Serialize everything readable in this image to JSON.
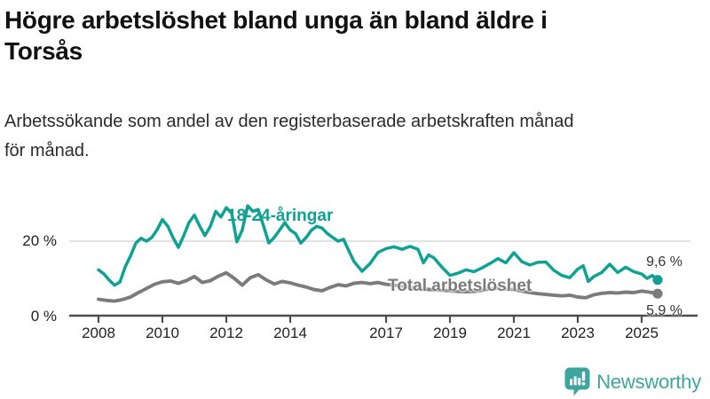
{
  "header": {
    "title_lines": [
      "Högre arbetslöshet bland unga än bland äldre i",
      "Torsås"
    ],
    "subtitle_lines": [
      "Arbetssökande som andel av den registerbaserade arbetskraften månad",
      "för månad."
    ]
  },
  "chart_data": {
    "type": "line",
    "title": "Högre arbetslöshet bland unga än bland äldre i Torsås",
    "subtitle": "Arbetssökande som andel av den registerbaserade arbetskraften månad för månad.",
    "xlabel": "",
    "ylabel": "",
    "unit": "%",
    "ylim": [
      0,
      31
    ],
    "x_range": [
      2008.0,
      2025.5
    ],
    "x_ticks": [
      2008,
      2010,
      2012,
      2014,
      2017,
      2019,
      2021,
      2023,
      2025
    ],
    "y_ticks": [
      {
        "value": 0,
        "label": "0 %"
      },
      {
        "value": 20,
        "label": "20 %"
      }
    ],
    "grid": "single horizontal gridline at 20 %",
    "legend_position": "inline labels on lines",
    "series": [
      {
        "name": "18-24-åringar",
        "color": "#0FA294",
        "end_label": "9,6 %",
        "end_value": 9.6,
        "points": [
          [
            2008.0,
            12.3
          ],
          [
            2008.17,
            11.2
          ],
          [
            2008.33,
            9.6
          ],
          [
            2008.5,
            8.2
          ],
          [
            2008.67,
            9.0
          ],
          [
            2008.83,
            13.0
          ],
          [
            2009.0,
            16.0
          ],
          [
            2009.17,
            19.5
          ],
          [
            2009.33,
            20.8
          ],
          [
            2009.5,
            20.0
          ],
          [
            2009.67,
            21.0
          ],
          [
            2009.83,
            23.0
          ],
          [
            2010.0,
            25.8
          ],
          [
            2010.17,
            24.0
          ],
          [
            2010.33,
            21.0
          ],
          [
            2010.5,
            18.3
          ],
          [
            2010.67,
            21.5
          ],
          [
            2010.83,
            25.0
          ],
          [
            2011.0,
            27.0
          ],
          [
            2011.17,
            24.0
          ],
          [
            2011.33,
            21.5
          ],
          [
            2011.5,
            24.0
          ],
          [
            2011.67,
            28.0
          ],
          [
            2011.83,
            26.5
          ],
          [
            2012.0,
            29.0
          ],
          [
            2012.17,
            27.5
          ],
          [
            2012.33,
            19.8
          ],
          [
            2012.5,
            23.0
          ],
          [
            2012.67,
            29.5
          ],
          [
            2012.83,
            28.0
          ],
          [
            2013.0,
            28.5
          ],
          [
            2013.17,
            24.0
          ],
          [
            2013.33,
            19.5
          ],
          [
            2013.5,
            21.0
          ],
          [
            2013.67,
            23.0
          ],
          [
            2013.83,
            25.0
          ],
          [
            2014.0,
            23.0
          ],
          [
            2014.17,
            22.0
          ],
          [
            2014.33,
            19.5
          ],
          [
            2014.5,
            21.0
          ],
          [
            2014.67,
            23.0
          ],
          [
            2014.83,
            24.0
          ],
          [
            2015.0,
            23.5
          ],
          [
            2015.17,
            22.0
          ],
          [
            2015.33,
            21.0
          ],
          [
            2015.5,
            20.0
          ],
          [
            2015.67,
            20.5
          ],
          [
            2015.83,
            17.5
          ],
          [
            2016.0,
            14.5
          ],
          [
            2016.25,
            11.9
          ],
          [
            2016.5,
            14.0
          ],
          [
            2016.75,
            17.0
          ],
          [
            2017.0,
            18.0
          ],
          [
            2017.25,
            18.5
          ],
          [
            2017.5,
            17.8
          ],
          [
            2017.75,
            18.6
          ],
          [
            2018.0,
            17.8
          ],
          [
            2018.17,
            14.2
          ],
          [
            2018.33,
            16.3
          ],
          [
            2018.5,
            15.5
          ],
          [
            2018.75,
            13.0
          ],
          [
            2019.0,
            10.8
          ],
          [
            2019.25,
            11.4
          ],
          [
            2019.5,
            12.3
          ],
          [
            2019.75,
            11.8
          ],
          [
            2020.0,
            12.8
          ],
          [
            2020.25,
            14.0
          ],
          [
            2020.5,
            15.3
          ],
          [
            2020.75,
            14.2
          ],
          [
            2021.0,
            16.9
          ],
          [
            2021.25,
            14.5
          ],
          [
            2021.5,
            13.6
          ],
          [
            2021.75,
            14.3
          ],
          [
            2022.0,
            14.4
          ],
          [
            2022.25,
            12.2
          ],
          [
            2022.5,
            10.8
          ],
          [
            2022.75,
            10.2
          ],
          [
            2023.0,
            12.5
          ],
          [
            2023.17,
            13.4
          ],
          [
            2023.33,
            9.2
          ],
          [
            2023.5,
            10.5
          ],
          [
            2023.75,
            11.6
          ],
          [
            2024.0,
            13.8
          ],
          [
            2024.25,
            11.6
          ],
          [
            2024.5,
            13.0
          ],
          [
            2024.75,
            11.8
          ],
          [
            2025.0,
            11.2
          ],
          [
            2025.17,
            10.0
          ],
          [
            2025.33,
            10.8
          ],
          [
            2025.5,
            9.6
          ]
        ]
      },
      {
        "name": "Total arbetslöshet",
        "color": "#7B7B7B",
        "end_label": "5,9 %",
        "end_value": 5.9,
        "points": [
          [
            2008.0,
            4.4
          ],
          [
            2008.25,
            4.1
          ],
          [
            2008.5,
            3.9
          ],
          [
            2008.75,
            4.3
          ],
          [
            2009.0,
            5.0
          ],
          [
            2009.25,
            6.2
          ],
          [
            2009.5,
            7.3
          ],
          [
            2009.75,
            8.4
          ],
          [
            2010.0,
            9.1
          ],
          [
            2010.25,
            9.3
          ],
          [
            2010.5,
            8.7
          ],
          [
            2010.75,
            9.4
          ],
          [
            2011.0,
            10.5
          ],
          [
            2011.25,
            8.9
          ],
          [
            2011.5,
            9.4
          ],
          [
            2011.75,
            10.6
          ],
          [
            2012.0,
            11.5
          ],
          [
            2012.25,
            10.0
          ],
          [
            2012.5,
            8.2
          ],
          [
            2012.75,
            10.2
          ],
          [
            2013.0,
            11.0
          ],
          [
            2013.25,
            9.6
          ],
          [
            2013.5,
            8.5
          ],
          [
            2013.75,
            9.2
          ],
          [
            2014.0,
            8.8
          ],
          [
            2014.25,
            8.2
          ],
          [
            2014.5,
            7.7
          ],
          [
            2014.75,
            7.0
          ],
          [
            2015.0,
            6.7
          ],
          [
            2015.25,
            7.6
          ],
          [
            2015.5,
            8.3
          ],
          [
            2015.75,
            8.0
          ],
          [
            2016.0,
            8.7
          ],
          [
            2016.25,
            8.9
          ],
          [
            2016.5,
            8.6
          ],
          [
            2016.75,
            8.9
          ],
          [
            2017.0,
            8.4
          ],
          [
            2017.25,
            8.2
          ],
          [
            2017.5,
            7.9
          ],
          [
            2017.75,
            7.6
          ],
          [
            2018.0,
            7.3
          ],
          [
            2018.25,
            7.1
          ],
          [
            2018.5,
            6.9
          ],
          [
            2018.75,
            6.8
          ],
          [
            2019.0,
            6.7
          ],
          [
            2019.25,
            6.5
          ],
          [
            2019.5,
            6.4
          ],
          [
            2019.75,
            6.5
          ],
          [
            2020.0,
            6.8
          ],
          [
            2020.25,
            7.2
          ],
          [
            2020.5,
            7.4
          ],
          [
            2020.75,
            7.2
          ],
          [
            2021.0,
            7.0
          ],
          [
            2021.25,
            6.6
          ],
          [
            2021.5,
            6.2
          ],
          [
            2021.75,
            5.9
          ],
          [
            2022.0,
            5.7
          ],
          [
            2022.25,
            5.5
          ],
          [
            2022.5,
            5.3
          ],
          [
            2022.75,
            5.5
          ],
          [
            2023.0,
            5.0
          ],
          [
            2023.25,
            4.8
          ],
          [
            2023.5,
            5.6
          ],
          [
            2023.75,
            6.0
          ],
          [
            2024.0,
            6.2
          ],
          [
            2024.25,
            6.1
          ],
          [
            2024.5,
            6.3
          ],
          [
            2024.75,
            6.2
          ],
          [
            2025.0,
            6.6
          ],
          [
            2025.25,
            6.3
          ],
          [
            2025.5,
            5.9
          ]
        ]
      }
    ]
  },
  "branding": {
    "logo_text": "Newsworthy",
    "logo_color": "#3EA49E",
    "logo_icon": "bar-chart-speech-bubble"
  },
  "colors": {
    "accent_teal": "#0FA294",
    "series_gray": "#7B7B7B",
    "gridline": "#D9D9D9",
    "axis": "#4D4D4D",
    "text": "#111111"
  }
}
